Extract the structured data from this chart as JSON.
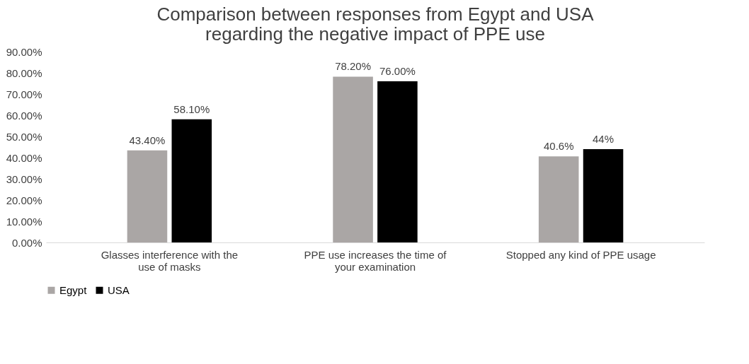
{
  "chart_data": {
    "type": "bar",
    "title": "Comparison between responses from Egypt and USA regarding the negative impact of PPE use",
    "categories": [
      "Glasses interference with the use of masks",
      "PPE use increases the time of your examination",
      "Stopped any kind of PPE usage"
    ],
    "series": [
      {
        "name": "Egypt",
        "color": "#aaa6a5",
        "values": [
          43.4,
          78.2,
          40.6
        ],
        "value_labels": [
          "43.40%",
          "78.20%",
          "40.6%"
        ]
      },
      {
        "name": "USA",
        "color": "#000000",
        "values": [
          58.1,
          76.0,
          44
        ],
        "value_labels": [
          "58.10%",
          "76.00%",
          "44%"
        ]
      }
    ],
    "ylim": [
      0,
      90
    ],
    "yticks": [
      {
        "value": 0,
        "label": "0.00%"
      },
      {
        "value": 10,
        "label": "10.00%"
      },
      {
        "value": 20,
        "label": "20.00%"
      },
      {
        "value": 30,
        "label": "30.00%"
      },
      {
        "value": 40,
        "label": "40.00%"
      },
      {
        "value": 50,
        "label": "50.00%"
      },
      {
        "value": 60,
        "label": "60.00%"
      },
      {
        "value": 70,
        "label": "70.00%"
      },
      {
        "value": 80,
        "label": "80.00%"
      },
      {
        "value": 90,
        "label": "90.00%"
      }
    ],
    "grid": false,
    "legend": "bottom"
  }
}
